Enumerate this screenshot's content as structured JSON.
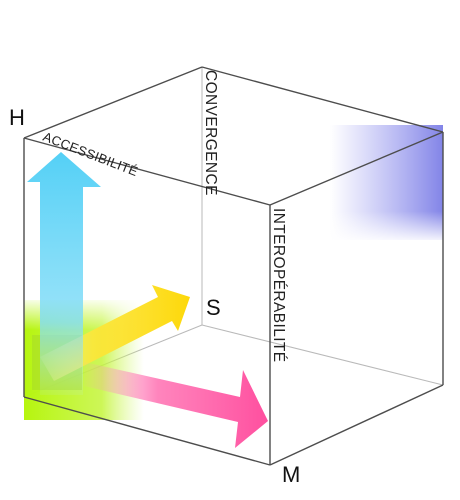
{
  "labels": {
    "h": "H",
    "s": "S",
    "m": "M",
    "accessibilite": "ACCESSIBILITÉ",
    "convergence": "CONVERGENCE",
    "interoperabilite": "INTEROPÉRABILITÉ"
  },
  "colors": {
    "edge": "#4d4d4d",
    "arrow_vertical": "#59d3f7",
    "arrow_diagonal": "#fde01a",
    "arrow_horizontal": "#ff5fa8",
    "corner_highlight": "#b6f50e",
    "back_shade": "#8e8ff0"
  },
  "icons": {
    "arrow_h": "arrow-up-icon",
    "arrow_s": "arrow-diagonal-icon",
    "arrow_m": "arrow-right-icon"
  }
}
